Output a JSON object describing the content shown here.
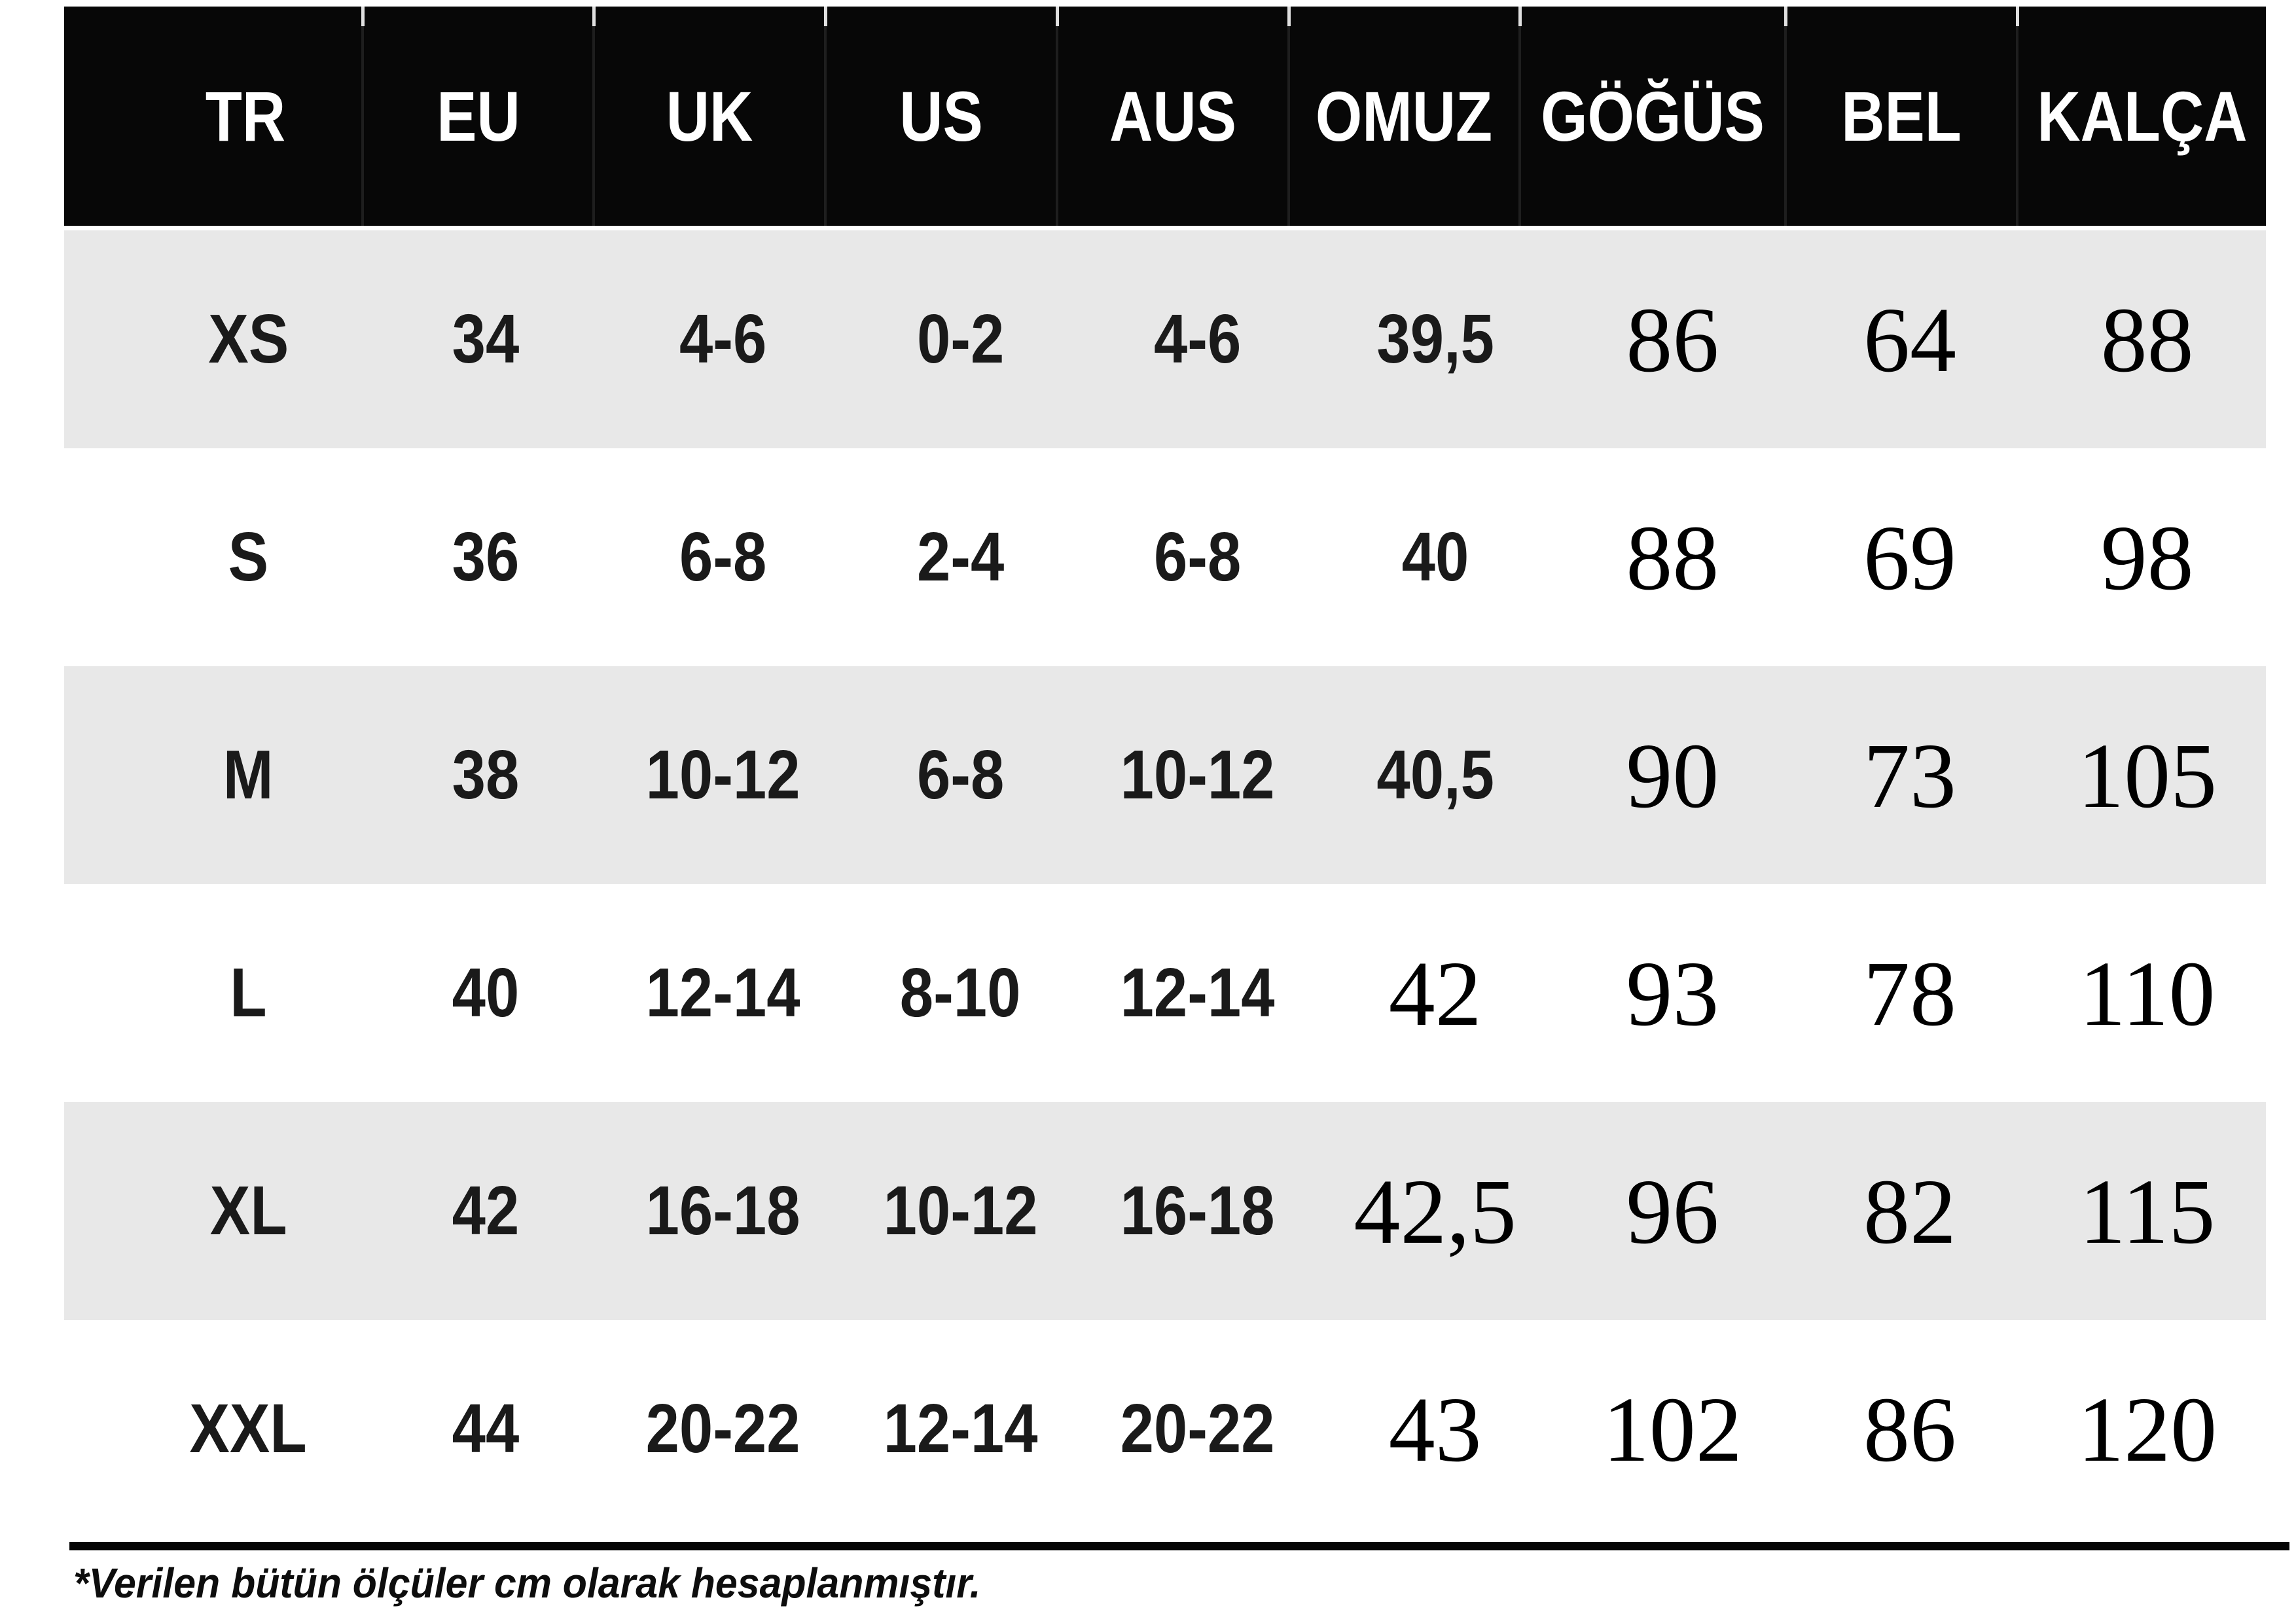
{
  "table": {
    "columns": [
      "TR",
      "EU",
      "UK",
      "US",
      "AUS",
      "OMUZ",
      "GÖĞÜS",
      "BEL",
      "KALÇA"
    ],
    "rows": [
      {
        "cells": [
          "XS",
          "34",
          "4-6",
          "0-2",
          "4-6",
          "39,5",
          "86",
          "64",
          "88"
        ],
        "shaded": true,
        "serif_from": 6
      },
      {
        "cells": [
          "S",
          "36",
          "6-8",
          "2-4",
          "6-8",
          "40",
          "88",
          "69",
          "98"
        ],
        "shaded": false,
        "serif_from": 6
      },
      {
        "cells": [
          "M",
          "38",
          "10-12",
          "6-8",
          "10-12",
          "40,5",
          "90",
          "73",
          "105"
        ],
        "shaded": true,
        "serif_from": 6
      },
      {
        "cells": [
          "L",
          "40",
          "12-14",
          "8-10",
          "12-14",
          "42",
          "93",
          "78",
          "110"
        ],
        "shaded": false,
        "serif_from": 5
      },
      {
        "cells": [
          "XL",
          "42",
          "16-18",
          "10-12",
          "16-18",
          "42,5",
          "96",
          "82",
          "115"
        ],
        "shaded": true,
        "serif_from": 5
      },
      {
        "cells": [
          "XXL",
          "44",
          "20-22",
          "12-14",
          "20-22",
          "43",
          "102",
          "86",
          "120"
        ],
        "shaded": false,
        "serif_from": 5
      }
    ]
  },
  "footer": {
    "note": "*Verilen bütün ölçüler cm olarak hesaplanmıştır."
  },
  "colors": {
    "header_bg": "#070707",
    "header_text": "#ffffff",
    "row_shaded": "#e8e8e8",
    "row_plain": "#ffffff",
    "cell_text": "#1a1a1a",
    "rule": "#050505"
  }
}
